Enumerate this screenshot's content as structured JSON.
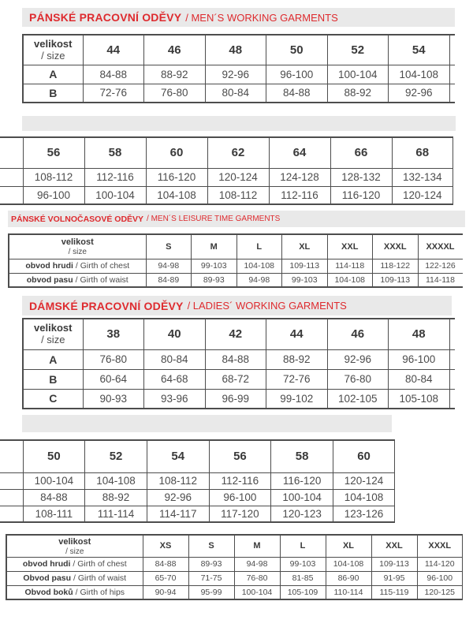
{
  "colors": {
    "accent_red": "#de2b2f",
    "bar_grey": "#e9e9e9",
    "border_grey": "#4d4d4d"
  },
  "sections": {
    "mens_working": {
      "title_cs": "PÁNSKÉ PRACOVNÍ ODĚVY",
      "title_en": "/ MEN´S WORKING GARMENTS"
    },
    "mens_leisure": {
      "title_cs": "PÁNSKÉ VOLNOČASOVÉ ODĚVY",
      "title_en": "/ MEN´S LEISURE TIME GARMENTS"
    },
    "ladies_working": {
      "title_cs": "DÁMSKÉ PRACOVNÍ ODĚVY",
      "title_en": "/ LADIES´ WORKING GARMENTS"
    }
  },
  "tables": {
    "mens_working_1": {
      "corner": {
        "line1": "velikost",
        "line2": "/ size"
      },
      "columns": [
        "44",
        "46",
        "48",
        "50",
        "52",
        "54"
      ],
      "rows": [
        {
          "label": "A",
          "values": [
            "84-88",
            "88-92",
            "92-96",
            "96-100",
            "100-104",
            "104-108"
          ]
        },
        {
          "label": "B",
          "values": [
            "72-76",
            "76-80",
            "80-84",
            "84-88",
            "88-92",
            "92-96"
          ]
        }
      ]
    },
    "mens_working_2": {
      "columns": [
        "56",
        "58",
        "60",
        "62",
        "64",
        "66",
        "68"
      ],
      "rows": [
        {
          "label": "",
          "values": [
            "108-112",
            "112-116",
            "116-120",
            "120-124",
            "124-128",
            "128-132",
            "132-134"
          ]
        },
        {
          "label": "",
          "values": [
            "96-100",
            "100-104",
            "104-108",
            "108-112",
            "112-116",
            "116-120",
            "120-124"
          ]
        }
      ]
    },
    "mens_leisure": {
      "corner": {
        "line1": "velikost",
        "line2": "/ size"
      },
      "columns": [
        "S",
        "M",
        "L",
        "XL",
        "XXL",
        "XXXL",
        "XXXXL"
      ],
      "rows": [
        {
          "label_cs": "obvod hrudi",
          "label_en": "/ Girth of chest",
          "values": [
            "94-98",
            "99-103",
            "104-108",
            "109-113",
            "114-118",
            "118-122",
            "122-126"
          ]
        },
        {
          "label_cs": "obvod pasu",
          "label_en": "/ Girth of waist",
          "values": [
            "84-89",
            "89-93",
            "94-98",
            "99-103",
            "104-108",
            "109-113",
            "114-118"
          ]
        }
      ]
    },
    "ladies_working_1": {
      "corner": {
        "line1": "velikost",
        "line2": "/ size"
      },
      "columns": [
        "38",
        "40",
        "42",
        "44",
        "46",
        "48"
      ],
      "rows": [
        {
          "label": "A",
          "values": [
            "76-80",
            "80-84",
            "84-88",
            "88-92",
            "92-96",
            "96-100"
          ]
        },
        {
          "label": "B",
          "values": [
            "60-64",
            "64-68",
            "68-72",
            "72-76",
            "76-80",
            "80-84"
          ]
        },
        {
          "label": "C",
          "values": [
            "90-93",
            "93-96",
            "96-99",
            "99-102",
            "102-105",
            "105-108"
          ]
        }
      ]
    },
    "ladies_working_2": {
      "columns": [
        "50",
        "52",
        "54",
        "56",
        "58",
        "60"
      ],
      "rows": [
        {
          "label": "",
          "values": [
            "100-104",
            "104-108",
            "108-112",
            "112-116",
            "116-120",
            "120-124"
          ]
        },
        {
          "label": "",
          "values": [
            "84-88",
            "88-92",
            "92-96",
            "96-100",
            "100-104",
            "104-108"
          ]
        },
        {
          "label": "",
          "values": [
            "108-111",
            "111-114",
            "114-117",
            "117-120",
            "120-123",
            "123-126"
          ]
        }
      ]
    },
    "ladies_leisure": {
      "corner": {
        "line1": "velikost",
        "line2": "/ size"
      },
      "columns": [
        "XS",
        "S",
        "M",
        "L",
        "XL",
        "XXL",
        "XXXL"
      ],
      "rows": [
        {
          "label_cs": "obvod hrudi",
          "label_en": "/ Girth of chest",
          "values": [
            "84-88",
            "89-93",
            "94-98",
            "99-103",
            "104-108",
            "109-113",
            "114-120"
          ]
        },
        {
          "label_cs": "Obvod pasu",
          "label_en": "/ Girth of waist",
          "values": [
            "65-70",
            "71-75",
            "76-80",
            "81-85",
            "86-90",
            "91-95",
            "96-100"
          ]
        },
        {
          "label_cs": "Obvod boků",
          "label_en": "/ Girth of hips",
          "values": [
            "90-94",
            "95-99",
            "100-104",
            "105-109",
            "110-114",
            "115-119",
            "120-125"
          ]
        }
      ]
    }
  }
}
